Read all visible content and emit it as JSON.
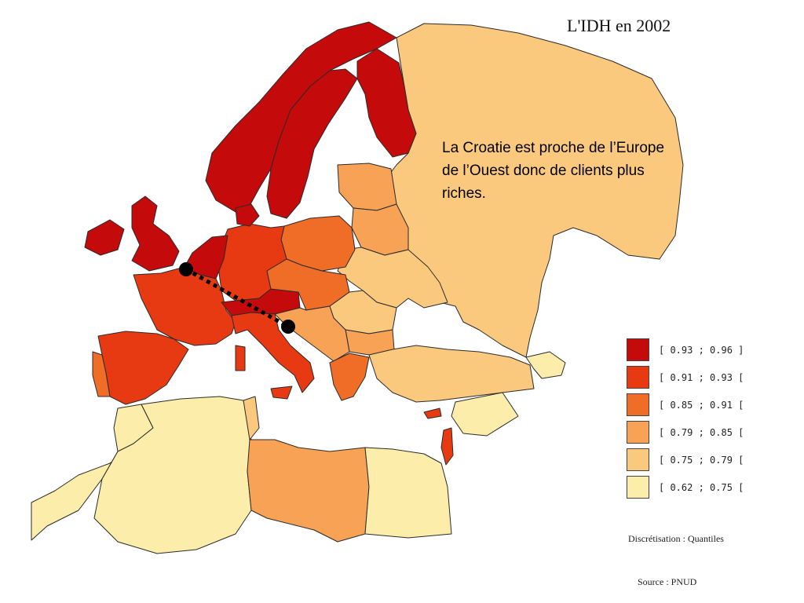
{
  "title": "L'IDH en 2002",
  "annotation": "La Croatie est proche de l’Europe de l’Ouest donc de clients plus riches.",
  "legend": {
    "classes": [
      {
        "label": "[ 0.93 ; 0.96 ]",
        "color": "#c40a0a"
      },
      {
        "label": "[ 0.91 ; 0.93 [",
        "color": "#e83a12"
      },
      {
        "label": "[ 0.85 ; 0.91 [",
        "color": "#f06d28"
      },
      {
        "label": "[ 0.79 ; 0.85 [",
        "color": "#f7a254"
      },
      {
        "label": "[ 0.75 ; 0.79 [",
        "color": "#fbc97e"
      },
      {
        "label": "[ 0.62 ; 0.75 [",
        "color": "#fdedaa"
      }
    ]
  },
  "discretisation": "Discrétisation : Quantiles",
  "source": "Source : PNUD",
  "map": {
    "connector": {
      "from": "Belgique",
      "to": "Croatie",
      "style": "dotted-line-black"
    }
  }
}
